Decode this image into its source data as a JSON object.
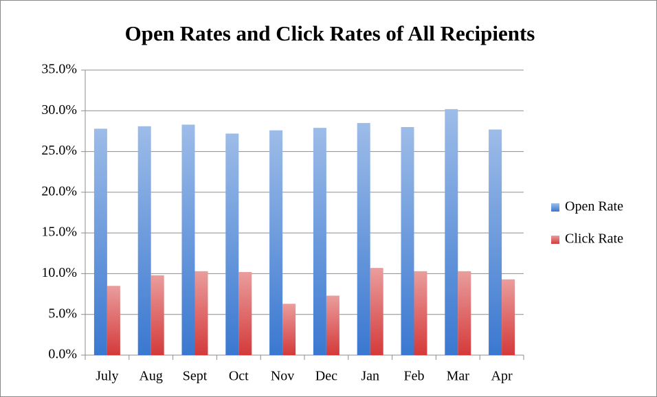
{
  "chart_data": {
    "type": "bar",
    "title": "Open Rates and Click Rates of All Recipients",
    "categories": [
      "July",
      "Aug",
      "Sept",
      "Oct",
      "Nov",
      "Dec",
      "Jan",
      "Feb",
      "Mar",
      "Apr"
    ],
    "series": [
      {
        "name": "Open Rate",
        "color": "#3a78d0",
        "values": [
          27.8,
          28.1,
          28.3,
          27.2,
          27.6,
          27.9,
          28.5,
          28.0,
          30.2,
          27.7
        ]
      },
      {
        "name": "Click Rate",
        "color": "#d43a3a",
        "values": [
          8.5,
          9.8,
          10.3,
          10.2,
          6.3,
          7.3,
          10.7,
          10.3,
          10.3,
          9.3
        ]
      }
    ],
    "ylim": [
      0,
      35
    ],
    "yticks": [
      {
        "value": 0,
        "label": "0.0%"
      },
      {
        "value": 5,
        "label": "5.0%"
      },
      {
        "value": 10,
        "label": "10.0%"
      },
      {
        "value": 15,
        "label": "15.0%"
      },
      {
        "value": 20,
        "label": "20.0%"
      },
      {
        "value": 25,
        "label": "25.0%"
      },
      {
        "value": 30,
        "label": "30.0%"
      },
      {
        "value": 35,
        "label": "35.0%"
      }
    ],
    "grid": true,
    "legend": "right"
  }
}
